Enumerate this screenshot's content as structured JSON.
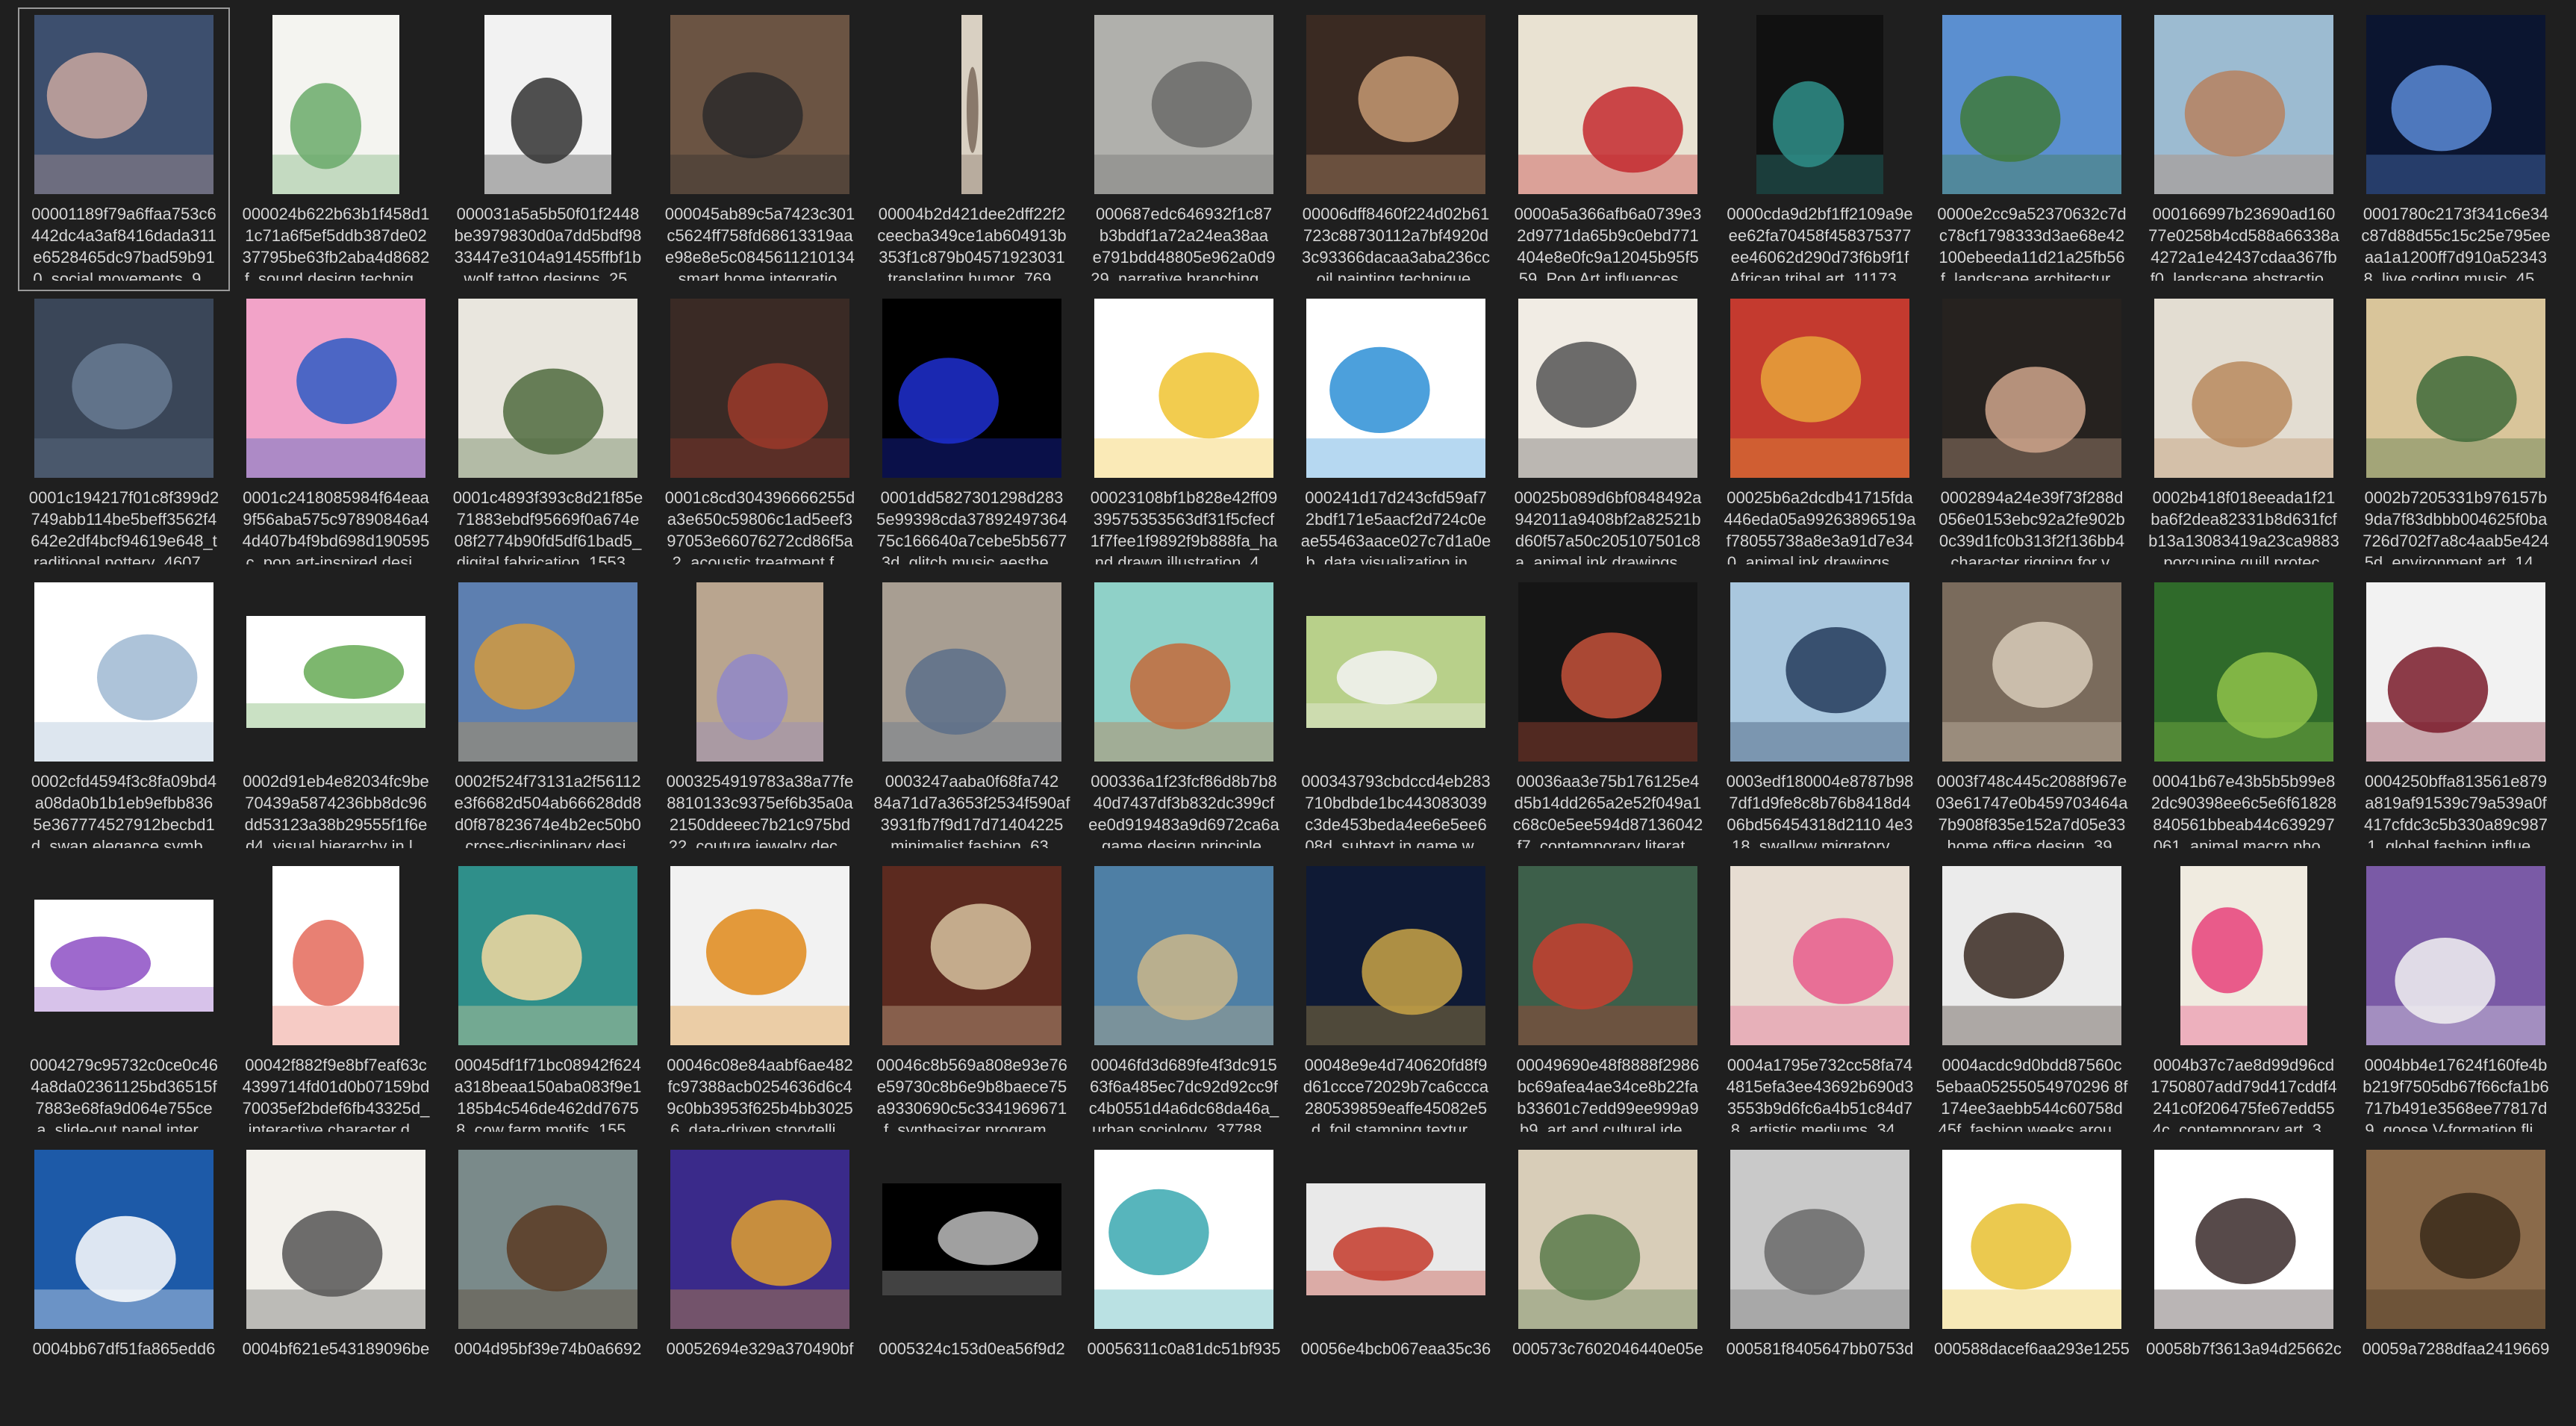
{
  "window": {
    "title": "",
    "background": "#1f1f1f"
  },
  "grid": {
    "items": [
      {
        "l1": "00001189f79a6ffaa753c6",
        "l2": "442dc4a3af8416dada311",
        "l3": "e6528465dc97bad59b91",
        "l4": "0_social movements_9...",
        "icon": "photo-icon",
        "c1": "#3d4f6e",
        "c2": "#c9a7a0",
        "selected": true
      },
      {
        "l1": "000024b622b63b1f458d1",
        "l2": "1c71a6f5ef5ddb387de02",
        "l3": "37795be63fb2aba4d8682",
        "l4": "f_sound design techniq...",
        "icon": "infographic-icon",
        "c1": "#f4f4f0",
        "c2": "#6aaa6a"
      },
      {
        "l1": "000031a5a5b50f01f2448",
        "l2": "be3979830d0a7dd5bdf98",
        "l3": "33447e3104a91455ffbf1b",
        "l4": "_wolf tattoo designs_25...",
        "icon": "wolf-icon",
        "c1": "#f2f2f2",
        "c2": "#333333"
      },
      {
        "l1": "000045ab89c5a7423c301",
        "l2": "c5624ff758fd68613319aa",
        "l3": "e98e8e5c0845611210134",
        "l4": "_smart home integratio...",
        "icon": "smartphone-icon",
        "c1": "#6b5443",
        "c2": "#2c2a2a"
      },
      {
        "l1": "00004b2d421dee2dff22f2",
        "l2": "ceecba349ce1ab604913b",
        "l3": "353f1c879b04571923031",
        "l4": "_translating humor_769...",
        "icon": "strip-icon",
        "c1": "#d9d0c2",
        "c2": "#7a6a5c"
      },
      {
        "l1": "000687edc646932f1c87",
        "l2": "b3bddf1a72a24ea38aa",
        "l3": "e791bdd48805e962a0d9",
        "l4": "29_narrative branching ...",
        "icon": "relief-icon",
        "c1": "#b0b0ac",
        "c2": "#6b6b68"
      },
      {
        "l1": "00006dff8460f224d02b61",
        "l2": "723c88730112a7bf4920d",
        "l3": "3c93366dacaa3aba236cc",
        "l4": "_oil painting technique...",
        "icon": "portrait-icon",
        "c1": "#3a2a22",
        "c2": "#c59972"
      },
      {
        "l1": "0000a5a366afb6a0739e3",
        "l2": "2d9771da65b9c0ebd771",
        "l3": "404e8e0fc9a12045b95f5",
        "l4": "59_Pop Art influences ...",
        "icon": "magazine-icon",
        "c1": "#e9e2d2",
        "c2": "#c4292f"
      },
      {
        "l1": "0000cda9d2bf1ff2109a9e",
        "l2": "ee62fa70458f458375377",
        "l3": "ee46062d290d73f6b9f1f",
        "l4": "African tribal art_11173...",
        "icon": "tattoo-icon",
        "c1": "#111111",
        "c2": "#2f8f8a"
      },
      {
        "l1": "0000e2cc9a52370632c7d",
        "l2": "c78cf1798333d3ae68e42",
        "l3": "100ebeeda11d21a25fb56",
        "l4": "f_landscape architectur...",
        "icon": "garden-icon",
        "c1": "#5b8fd0",
        "c2": "#3f7a3b"
      },
      {
        "l1": "000166997b23690ad160",
        "l2": "77e0258b4cd588a66338a",
        "l3": "4272a1e42437cdaa367fb",
        "l4": "f0_landscape abstractio...",
        "icon": "landscape-icon",
        "c1": "#9cbbd1",
        "c2": "#b7815f"
      },
      {
        "l1": "0001780c2173f341c6e34",
        "l2": "c87d88d55c15c25e795ee",
        "l3": "aa1a1200ff7d910a52343",
        "l4": "8_live coding music_45...",
        "icon": "stage-icon",
        "c1": "#0b1530",
        "c2": "#5a8ad6"
      },
      {
        "l1": "0001c194217f01c8f399d2",
        "l2": "749abb114be5beff3562f4",
        "l3": "642e2df4bcf94619e648_t",
        "l4": "raditional pottery_4607...",
        "icon": "pottery-icon",
        "c1": "#3a4658",
        "c2": "#697b93"
      },
      {
        "l1": "0001c2418085984f64eaa",
        "l2": "9f56aba575c97890846a4",
        "l3": "4d407b4f9bd698d190595",
        "l4": "c_pop art-inspired desi...",
        "icon": "popart-icon",
        "c1": "#f2a3c8",
        "c2": "#2f5cc4"
      },
      {
        "l1": "0001c4893f393c8d21f85e",
        "l2": "71883ebdf95669f0a674e",
        "l3": "08f2774b90fd5df61bad5_",
        "l4": "digital fabrication_1553...",
        "icon": "fabric-icon",
        "c1": "#e9e6de",
        "c2": "#4f6a3e"
      },
      {
        "l1": "0001c8cd304396666255d",
        "l2": "a3e650c59806c1ad5eef3",
        "l3": "97053e66076272cd86f5a",
        "l4": "2_acoustic treatment f...",
        "icon": "room-icon",
        "c1": "#3a2a25",
        "c2": "#9b3a2a"
      },
      {
        "l1": "0001dd5827301298d283",
        "l2": "5e99398cda37892497364",
        "l3": "75c166640a7cebe5b5677",
        "l4": "3d_glitch music aesthe...",
        "icon": "dvd-icon",
        "c1": "#000000",
        "c2": "#1e2fd0"
      },
      {
        "l1": "00023108bf1b828e42ff09",
        "l2": "39575353563df31f5cfecf",
        "l3": "1f7fee1f9892f9b888fa_ha",
        "l4": "nd drawn illustration_4...",
        "icon": "flower-icon",
        "c1": "#ffffff",
        "c2": "#f0c330"
      },
      {
        "l1": "000241d17d243cfd59af7",
        "l2": "2bdf171e5aacf2d724c0e",
        "l3": "ae55463aace027c7d1a0e",
        "l4": "b_data visualization in ...",
        "icon": "chart-icon",
        "c1": "#ffffff",
        "c2": "#2d8fd6"
      },
      {
        "l1": "00025b089d6bf0848492a",
        "l2": "942011a9408bf2a82521b",
        "l3": "d60f57a50c205107501c8",
        "l4": "a_animal ink drawings_...",
        "icon": "bird-icon",
        "c1": "#f1ece4",
        "c2": "#555555"
      },
      {
        "l1": "00025b6a2dcdb41715fda",
        "l2": "446eda05a99263896519a",
        "l3": "f78055738a8e3a91d7e34",
        "l4": "0_animal ink drawings_...",
        "icon": "tiger-icon",
        "c1": "#c43a2f",
        "c2": "#e8a43a"
      },
      {
        "l1": "0002894a24e39f73f288d",
        "l2": "056e0153ebc92a2fe902b",
        "l3": "0c39d1fc0b313f2f136bb4",
        "l4": "_character rigging for v...",
        "icon": "person-icon",
        "c1": "#26221f",
        "c2": "#cfa58c"
      },
      {
        "l1": "0002b418f018eeada1f21",
        "l2": "ba6f2dea82331b8d631fcf",
        "l3": "b13a13083419a23ca9883",
        "l4": "_porcupine quill protec...",
        "icon": "craft-icon",
        "c1": "#e3ddd2",
        "c2": "#b88a5e"
      },
      {
        "l1": "0002b7205331b976157b",
        "l2": "9da7f83dbbb004625f0ba",
        "l3": "726d702f7a8c4aab5e424",
        "l4": "5d_environment art_14...",
        "icon": "forest-icon",
        "c1": "#d9c59a",
        "c2": "#3e6a3a"
      },
      {
        "l1": "0002cfd4594f3c8fa09bd4",
        "l2": "a08da0b1b1eb9efbb836",
        "l3": "5e367774527912becbd1",
        "l4": "d_swan elegance symb...",
        "icon": "necklace-icon",
        "c1": "#ffffff",
        "c2": "#9fb8d2"
      },
      {
        "l1": "0002d91eb4e82034fc9be",
        "l2": "70439a5874236bb8dc96",
        "l3": "dd53123a38b29555f1f6e",
        "l4": "d4_visual hierarchy in l...",
        "icon": "diagram-icon",
        "c1": "#ffffff",
        "c2": "#66aa55"
      },
      {
        "l1": "0002f524f73131a2f56112",
        "l2": "e3f6682d504ab66628dd8",
        "l3": "d0f87823674e4b2ec50b0",
        "l4": "_cross-disciplinary desi...",
        "icon": "pavilion-icon",
        "c1": "#5d7fb0",
        "c2": "#d29a3f"
      },
      {
        "l1": "0003254919783a38a77fe",
        "l2": "8810133c9375ef6b35a0a",
        "l3": "2150ddeeec7b21c975bd",
        "l4": "22_couture jewelry dec...",
        "icon": "dress-icon",
        "c1": "#b9a58f",
        "c2": "#8f87c9"
      },
      {
        "l1": "0003247aaba0f68fa742",
        "l2": "84a71d7a3653f2534f590af",
        "l3": "3931fb7f9d17d71404225",
        "l4": "_minimalist fashion_63...",
        "icon": "street-icon",
        "c1": "#a89e92",
        "c2": "#5c6f8a"
      },
      {
        "l1": "000336a1f23fcf86d8b7b8",
        "l2": "40d7437df3b832dc399cf",
        "l3": "ee0d919483a9d6972ca6a",
        "l4": "_game design principle...",
        "icon": "poster-icon",
        "c1": "#8fd1c8",
        "c2": "#c46a3a"
      },
      {
        "l1": "000343793cbdccd4eb283",
        "l2": "710bdbde1bc443083039",
        "l3": "c3de453beda4ee6e5ee6",
        "l4": "08d_subtext in game w...",
        "icon": "goose-icon",
        "c1": "#b8d08a",
        "c2": "#f3f3f3"
      },
      {
        "l1": "00036aa3e75b176125e4",
        "l2": "d5b14dd265a2e52f049a1",
        "l3": "c68c0e5ee594d87136042",
        "l4": "f7_contemporary literat...",
        "icon": "book-icon",
        "c1": "#151515",
        "c2": "#c4513a"
      },
      {
        "l1": "0003edf180004e8787b98",
        "l2": "7df1d9fe8c8b76b8418d4",
        "l3": "06bd56454318d2110 4e3",
        "l4": "18_swallow migratory ...",
        "icon": "swallow-icon",
        "c1": "#a9c7de",
        "c2": "#243b5c"
      },
      {
        "l1": "0003f748c445c2088f967e",
        "l2": "03e61747e0b459703464a",
        "l3": "7b908f835e152a7d05e33",
        "l4": "_home office design_39...",
        "icon": "office-icon",
        "c1": "#7a6b5c",
        "c2": "#d8cbb8"
      },
      {
        "l1": "00041b67e43b5b5b99e8",
        "l2": "2dc90398ee6c5e6f61828",
        "l3": "840561bbeab44c639297",
        "l4": "061_animal macro pho...",
        "icon": "scales-icon",
        "c1": "#2f6a2a",
        "c2": "#8fc24a"
      },
      {
        "l1": "0004250bffa813561e879",
        "l2": "a819af91539c79a539a0f",
        "l3": "417cfdc3c5b330a89c987",
        "l4": "1_global fashion influe...",
        "icon": "garment-icon",
        "c1": "#f2f2f2",
        "c2": "#7a1b2a"
      },
      {
        "l1": "0004279c95732c0ce0c46",
        "l2": "4a8da02361125bd36515f",
        "l3": "7883e68fa9d064e755ce",
        "l4": "a_slide-out panel inter...",
        "icon": "slide-icon",
        "c1": "#ffffff",
        "c2": "#8d4fc4"
      },
      {
        "l1": "00042f882f9e8bf7eaf63c",
        "l2": "4399714fd01d0b07159bd",
        "l3": "70035ef2bdef6fb43325d_",
        "l4": "interactive character d...",
        "icon": "doc-icon",
        "c1": "#ffffff",
        "c2": "#e46a5a"
      },
      {
        "l1": "00045df1f71bc08942f624",
        "l2": "a318beaa150aba083f9e1",
        "l3": "185b4c546de462dd7675",
        "l4": "8_cow farm motifs_155...",
        "icon": "pattern-icon",
        "c1": "#2f8f8a",
        "c2": "#f3d9a0"
      },
      {
        "l1": "00046c08e84aabf6ae482",
        "l2": "fc97388acb0254636d6c4",
        "l3": "9c0bb3953f625b4bb3025",
        "l4": "6_data-driven storytelli...",
        "icon": "banner-icon",
        "c1": "#f2f2f2",
        "c2": "#e08a1a"
      },
      {
        "l1": "00046c8b569a808e93e76",
        "l2": "e59730c8b6e9b8baece75",
        "l3": "a9330690c5c3341969671",
        "l4": "f_synthesizer program...",
        "icon": "manual-icon",
        "c1": "#5c2a1f",
        "c2": "#d6c2a0"
      },
      {
        "l1": "00046fd3d689fe4f3dc915",
        "l2": "63f6a485ec7dc92d92cc9f",
        "l3": "c4b0551d4a6dc68da46a_",
        "l4": "urban sociology_37788...",
        "icon": "beach-icon",
        "c1": "#4e7fa5",
        "c2": "#cdb78a"
      },
      {
        "l1": "00048e9e4d740620fd8f9",
        "l2": "d61ccce72029b7ca6ccca",
        "l3": "280539859eaffe45082e5",
        "l4": "d_foil stamping textur...",
        "icon": "frame-icon",
        "c1": "#0f1a35",
        "c2": "#c9a446"
      },
      {
        "l1": "00049690e48f8888f2986",
        "l2": "bc69afea4ae34ce8b22fa",
        "l3": "b33601c7edd99ee999a9",
        "l4": "b9_art and cultural ide...",
        "icon": "group-icon",
        "c1": "#3d5f4a",
        "c2": "#c7402f"
      },
      {
        "l1": "0004a1795e732cc58fa74",
        "l2": "4815efa3ee43692b690d3",
        "l3": "3553b9d6fc6a4b51c84d7",
        "l4": "8_artistic mediums_34...",
        "icon": "painting-icon",
        "c1": "#e7ddd2",
        "c2": "#e75c8c"
      },
      {
        "l1": "0004acdc9d0bdd87560c",
        "l2": "5ebaa05255054970296 8f",
        "l3": "174ee3aebb544c60758d",
        "l4": "45f_fashion weeks arou...",
        "icon": "models-icon",
        "c1": "#ebebeb",
        "c2": "#3a2a22"
      },
      {
        "l1": "0004b37c7ae8d99d96cd",
        "l2": "1750807add79d417cddf4",
        "l3": "241c0f206475fe67edd55",
        "l4": "4c_contemporary art_3...",
        "icon": "bauhaus-icon",
        "c1": "#f0ebe0",
        "c2": "#e8427a"
      },
      {
        "l1": "0004bb4e17624f160fe4b",
        "l2": "b219f7505db67f66cfa1b6",
        "l3": "717b491e3568ee77817d",
        "l4": "9_goose V-formation fli...",
        "icon": "brick-icon",
        "c1": "#7a5aa6",
        "c2": "#f2f2f2"
      },
      {
        "l1": "0004bb67df51fa865edd6",
        "l2": "",
        "l3": "",
        "l4": "",
        "icon": "slide-blue-icon",
        "c1": "#1d5aa8",
        "c2": "#ffffff"
      },
      {
        "l1": "0004bf621e543189096be",
        "l2": "",
        "l3": "",
        "l4": "",
        "icon": "quote-icon",
        "c1": "#f3f1ec",
        "c2": "#555555"
      },
      {
        "l1": "0004d95bf39e74b0a6692",
        "l2": "",
        "l3": "",
        "l4": "",
        "icon": "figure-icon",
        "c1": "#7a8a8a",
        "c2": "#5a3a22"
      },
      {
        "l1": "00052694e329a370490bf",
        "l2": "",
        "l3": "",
        "l4": "",
        "icon": "glass-icon",
        "c1": "#3a2a8a",
        "c2": "#e0a030"
      },
      {
        "l1": "0005324c153d0ea56f9d2",
        "l2": "",
        "l3": "",
        "l4": "",
        "icon": "sculpture-icon",
        "c1": "#000000",
        "c2": "#bcbcbc"
      },
      {
        "l1": "00056311c0a81dc51bf935",
        "l2": "",
        "l3": "",
        "l4": "",
        "icon": "pendant-icon",
        "c1": "#ffffff",
        "c2": "#3aa8b0"
      },
      {
        "l1": "00056e4bcb067eaa35c36",
        "l2": "",
        "l3": "",
        "l4": "",
        "icon": "web-icon",
        "c1": "#e9e9e9",
        "c2": "#c43a2a"
      },
      {
        "l1": "000573c7602046440e05e",
        "l2": "",
        "l3": "",
        "l4": "",
        "icon": "interior-icon",
        "c1": "#d8cdb8",
        "c2": "#5a7a4a"
      },
      {
        "l1": "000581f8405647bb0753d",
        "l2": "",
        "l3": "",
        "l4": "",
        "icon": "building-icon",
        "c1": "#c9c9c9",
        "c2": "#6a6a6a"
      },
      {
        "l1": "000588dacef6aa293e1255",
        "l2": "",
        "l3": "",
        "l4": "",
        "icon": "framed-art-icon",
        "c1": "#ffffff",
        "c2": "#e8c030"
      },
      {
        "l1": "00058b7f3613a94d25662c",
        "l2": "",
        "l3": "",
        "l4": "",
        "icon": "hijab-icon",
        "c1": "#ffffff",
        "c2": "#3a2a2a"
      },
      {
        "l1": "00059a7288dfaa2419669",
        "l2": "",
        "l3": "",
        "l4": "",
        "icon": "texture-icon",
        "c1": "#8a6a4a",
        "c2": "#3a2a1a"
      }
    ]
  }
}
